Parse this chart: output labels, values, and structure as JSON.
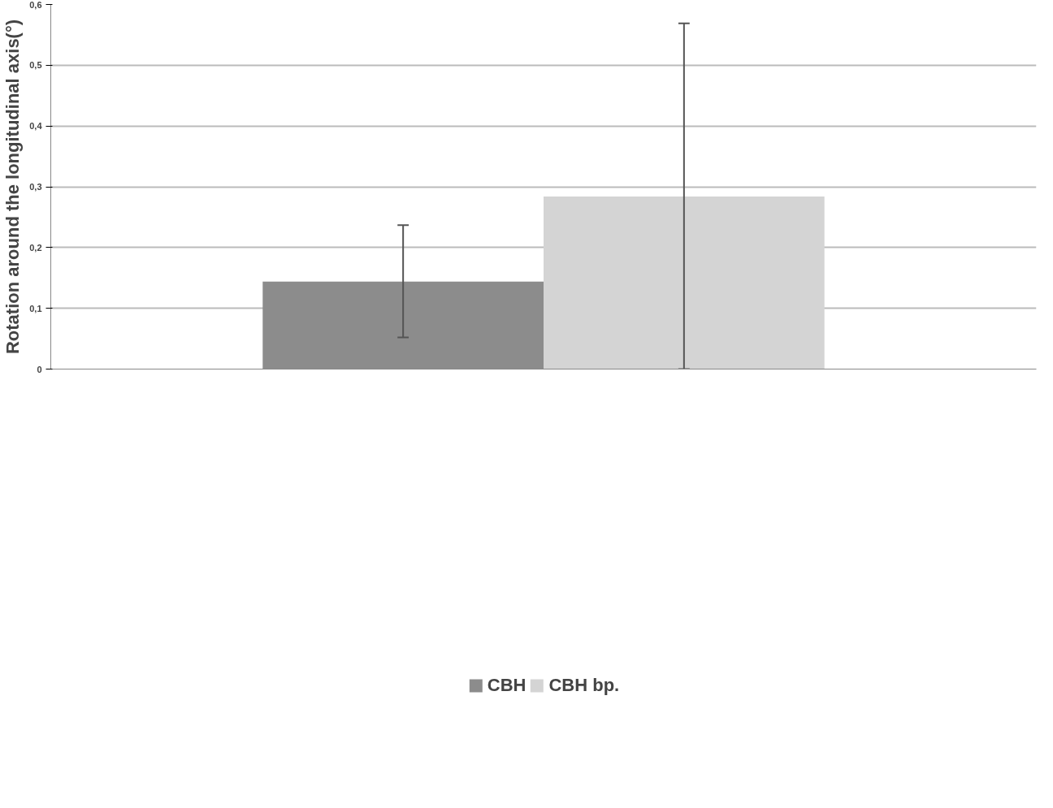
{
  "chart_data": {
    "type": "bar",
    "ylabel": "Rotation around the longitudinal axis(°)",
    "categories": [
      null
    ],
    "series": [
      {
        "name": "CBH",
        "color": "#8c8c8c",
        "values": [
          0.144
        ],
        "errors": [
          [
            0.052,
            0.237
          ]
        ]
      },
      {
        "name": "CBH bp.",
        "color": "#d4d4d4",
        "values": [
          0.284
        ],
        "errors": [
          [
            0.0,
            0.569
          ]
        ]
      }
    ],
    "ylim": [
      0,
      0.6
    ],
    "yticks": [
      0,
      {
        "value": 0.1,
        "label": "0,1"
      },
      {
        "value": 0.2,
        "label": "0,2"
      },
      {
        "value": 0.3,
        "label": "0,3"
      },
      {
        "value": 0.4,
        "label": "0,4"
      },
      {
        "value": 0.5,
        "label": "0,5"
      },
      {
        "value": 0.6,
        "label": "0,6"
      }
    ],
    "grid": "y",
    "legend": "bottom"
  }
}
